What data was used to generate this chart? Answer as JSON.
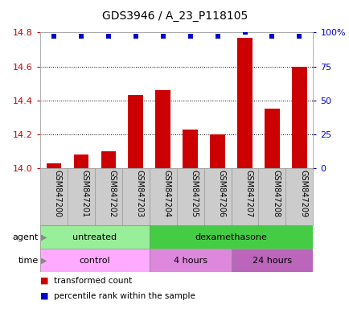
{
  "title": "GDS3946 / A_23_P118105",
  "samples": [
    "GSM847200",
    "GSM847201",
    "GSM847202",
    "GSM847203",
    "GSM847204",
    "GSM847205",
    "GSM847206",
    "GSM847207",
    "GSM847208",
    "GSM847209"
  ],
  "transformed_count": [
    14.03,
    14.08,
    14.1,
    14.43,
    14.46,
    14.23,
    14.2,
    14.77,
    14.35,
    14.6
  ],
  "percentile_rank": [
    97,
    97,
    97,
    97,
    97,
    97,
    97,
    100,
    97,
    97
  ],
  "ylim": [
    14.0,
    14.8
  ],
  "yticks": [
    14.0,
    14.2,
    14.4,
    14.6,
    14.8
  ],
  "right_yticks": [
    0,
    25,
    50,
    75,
    100
  ],
  "right_ylabels": [
    "0",
    "25",
    "50",
    "75",
    "100%"
  ],
  "bar_color": "#cc0000",
  "dot_color": "#0000cc",
  "grid_color": "#000000",
  "agent_groups": [
    {
      "label": "untreated",
      "start": 0,
      "end": 4,
      "color": "#99ee99"
    },
    {
      "label": "dexamethasone",
      "start": 4,
      "end": 10,
      "color": "#44cc44"
    }
  ],
  "time_groups": [
    {
      "label": "control",
      "start": 0,
      "end": 4,
      "color": "#ffaaff"
    },
    {
      "label": "4 hours",
      "start": 4,
      "end": 7,
      "color": "#dd88dd"
    },
    {
      "label": "24 hours",
      "start": 7,
      "end": 10,
      "color": "#bb66bb"
    }
  ],
  "legend_items": [
    {
      "label": "transformed count",
      "color": "#cc0000"
    },
    {
      "label": "percentile rank within the sample",
      "color": "#0000cc"
    }
  ],
  "left_label_color": "#cc0000",
  "right_label_color": "#0000cc",
  "tick_label_area_color": "#cccccc"
}
